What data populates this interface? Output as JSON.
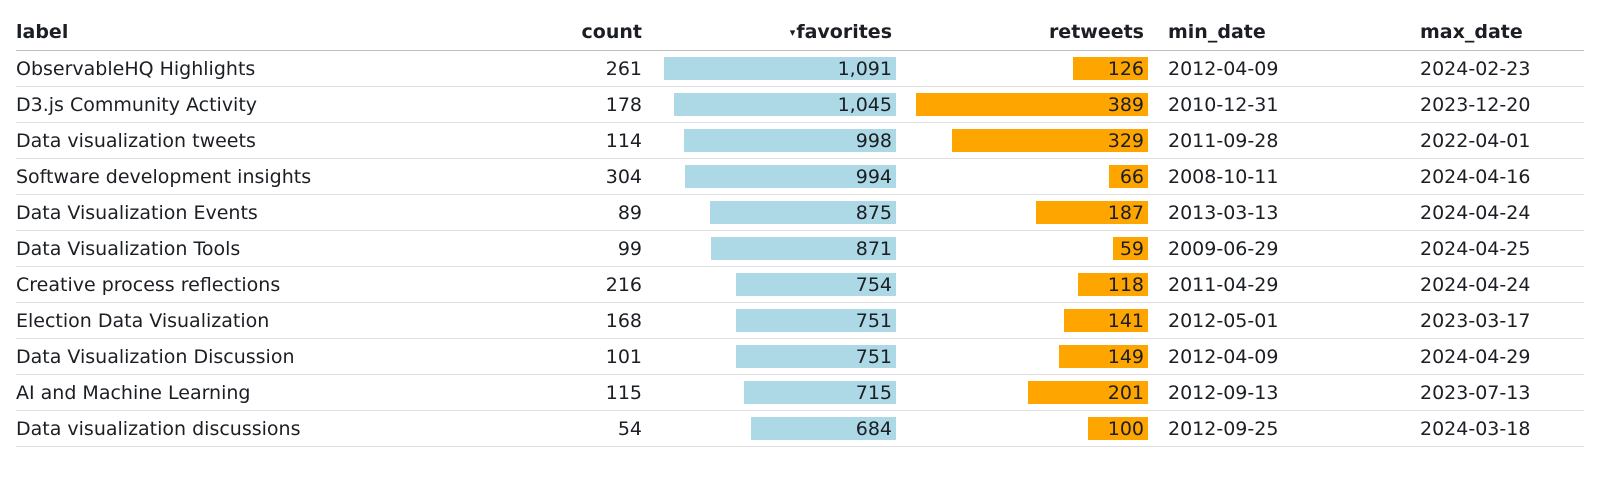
{
  "table": {
    "columns": {
      "label": "label",
      "count": "count",
      "favorites": "favorites",
      "retweets": "retweets",
      "min_date": "min_date",
      "max_date": "max_date"
    },
    "sort_indicator": "▾",
    "colors": {
      "favorites_bar": "#add8e6",
      "retweets_bar": "#ffa500"
    },
    "rows": [
      {
        "label": "ObservableHQ Highlights",
        "count": "261",
        "favorites": "1,091",
        "favorites_value": 1091,
        "retweets": "126",
        "retweets_value": 126,
        "min_date": "2012-04-09",
        "max_date": "2024-02-23"
      },
      {
        "label": "D3.js Community Activity",
        "count": "178",
        "favorites": "1,045",
        "favorites_value": 1045,
        "retweets": "389",
        "retweets_value": 389,
        "min_date": "2010-12-31",
        "max_date": "2023-12-20"
      },
      {
        "label": "Data visualization tweets",
        "count": "114",
        "favorites": "998",
        "favorites_value": 998,
        "retweets": "329",
        "retweets_value": 329,
        "min_date": "2011-09-28",
        "max_date": "2022-04-01"
      },
      {
        "label": "Software development insights",
        "count": "304",
        "favorites": "994",
        "favorites_value": 994,
        "retweets": "66",
        "retweets_value": 66,
        "min_date": "2008-10-11",
        "max_date": "2024-04-16"
      },
      {
        "label": "Data Visualization Events",
        "count": "89",
        "favorites": "875",
        "favorites_value": 875,
        "retweets": "187",
        "retweets_value": 187,
        "min_date": "2013-03-13",
        "max_date": "2024-04-24"
      },
      {
        "label": "Data Visualization Tools",
        "count": "99",
        "favorites": "871",
        "favorites_value": 871,
        "retweets": "59",
        "retweets_value": 59,
        "min_date": "2009-06-29",
        "max_date": "2024-04-25"
      },
      {
        "label": "Creative process reflections",
        "count": "216",
        "favorites": "754",
        "favorites_value": 754,
        "retweets": "118",
        "retweets_value": 118,
        "min_date": "2011-04-29",
        "max_date": "2024-04-24"
      },
      {
        "label": "Election Data Visualization",
        "count": "168",
        "favorites": "751",
        "favorites_value": 751,
        "retweets": "141",
        "retweets_value": 141,
        "min_date": "2012-05-01",
        "max_date": "2023-03-17"
      },
      {
        "label": "Data Visualization Discussion",
        "count": "101",
        "favorites": "751",
        "favorites_value": 751,
        "retweets": "149",
        "retweets_value": 149,
        "min_date": "2012-04-09",
        "max_date": "2024-04-29"
      },
      {
        "label": "AI and Machine Learning",
        "count": "115",
        "favorites": "715",
        "favorites_value": 715,
        "retweets": "201",
        "retweets_value": 201,
        "min_date": "2012-09-13",
        "max_date": "2023-07-13"
      },
      {
        "label": "Data visualization discussions",
        "count": "54",
        "favorites": "684",
        "favorites_value": 684,
        "retweets": "100",
        "retweets_value": 100,
        "min_date": "2012-09-25",
        "max_date": "2024-03-18"
      }
    ]
  }
}
